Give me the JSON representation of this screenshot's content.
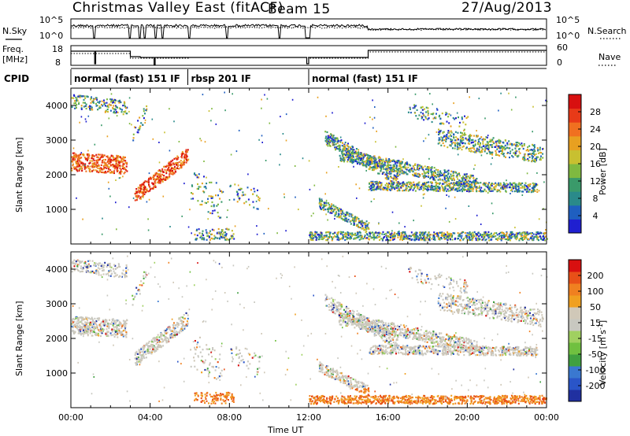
{
  "header": {
    "station": "Christmas Valley East (fitACF)",
    "beam": "Beam 15",
    "date": "27/Aug/2013"
  },
  "panels": {
    "nsky_label": "N.Sky",
    "nsky_ticks": [
      "10^5",
      "10^0"
    ],
    "nsearch_label": "N.Search",
    "freq_label_1": "Freq.",
    "freq_label_2": "[MHz]",
    "freq_ticks": [
      "18",
      "8"
    ],
    "nave_ticks": [
      "60",
      "0"
    ],
    "nave_label": "Nave",
    "cpid_label": "CPID",
    "modes": [
      {
        "label": "normal (fast) 151 IF",
        "start_h": 0,
        "end_h": 5.9
      },
      {
        "label": "rbsp 201 IF",
        "start_h": 5.9,
        "end_h": 12.0
      },
      {
        "label": "normal (fast) 151 IF",
        "start_h": 12.0,
        "end_h": 24.0
      }
    ]
  },
  "chart_data": [
    {
      "type": "heatmap",
      "name": "power",
      "ylabel": "Slant Range [km]",
      "xlabel": "",
      "xlim": [
        0,
        24
      ],
      "ylim": [
        0,
        4500
      ],
      "yticks": [
        "1000",
        "2000",
        "3000",
        "4000"
      ],
      "colorbar": {
        "label": "Power [dB]",
        "ticks": [
          "4",
          "8",
          "12",
          "16",
          "20",
          "24",
          "28"
        ],
        "colors": [
          "#1f1fd0",
          "#1f5fc0",
          "#2a8a8a",
          "#3a9a6a",
          "#7fb940",
          "#c8c030",
          "#e8a020",
          "#f07020",
          "#e83a18",
          "#d81010"
        ]
      }
    },
    {
      "type": "heatmap",
      "name": "velocity",
      "ylabel": "Slant Range [km]",
      "xlabel": "Time UT",
      "xlim": [
        0,
        24
      ],
      "ylim": [
        0,
        4500
      ],
      "yticks": [
        "1000",
        "2000",
        "3000",
        "4000"
      ],
      "xticks": [
        "00:00",
        "04:00",
        "08:00",
        "12:00",
        "16:00",
        "20:00",
        "00:00"
      ],
      "colorbar": {
        "label": "Velocity [m s^-1]",
        "ticks": [
          "200",
          "100",
          "50",
          "15",
          "-15",
          "-50",
          "-100",
          "-200"
        ],
        "colors": [
          "#2030a0",
          "#2a55c8",
          "#3a78d0",
          "#40a040",
          "#70c040",
          "#a0d060",
          "#c8c8c0",
          "#d0c8b8",
          "#f0a020",
          "#f08020",
          "#e85018",
          "#d81010"
        ]
      }
    }
  ]
}
